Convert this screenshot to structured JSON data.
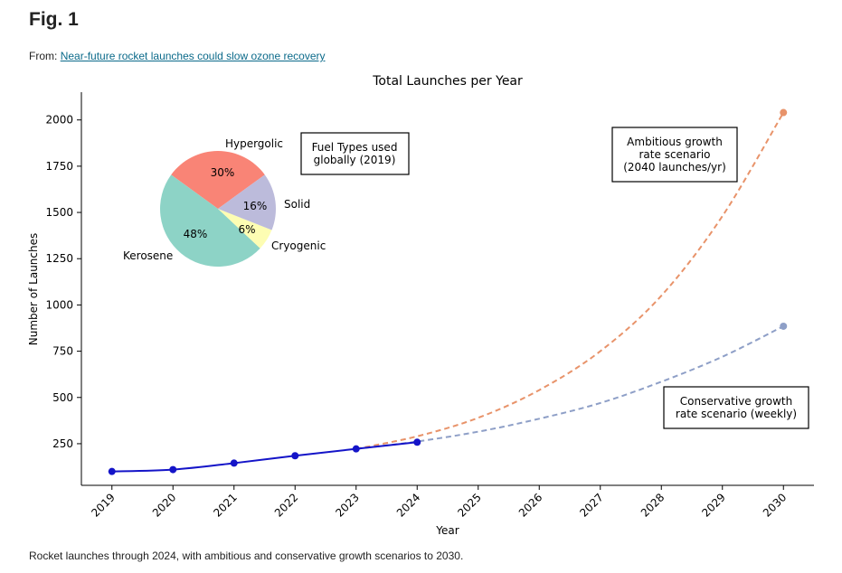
{
  "figure": {
    "title": "Fig. 1",
    "from_prefix": "From:",
    "source_link": "Near-future rocket launches could slow ozone recovery",
    "caption": "Rocket launches through 2024, with ambitious and conservative growth scenarios to 2030."
  },
  "chart_data": [
    {
      "type": "line",
      "title": "Total Launches per Year",
      "xlabel": "Year",
      "ylabel": "Number of Launches",
      "xlim": [
        2018.5,
        2030.5
      ],
      "ylim": [
        25,
        2150
      ],
      "x_ticks": [
        "2019",
        "2020",
        "2021",
        "2022",
        "2023",
        "2024",
        "2025",
        "2026",
        "2027",
        "2028",
        "2029",
        "2030"
      ],
      "y_ticks": [
        "250",
        "500",
        "750",
        "1000",
        "1250",
        "1500",
        "1750",
        "2000"
      ],
      "grid": false,
      "series": [
        {
          "style": "solid-with-markers",
          "color": "#1414c8",
          "x": [
            2019,
            2020,
            2021,
            2022,
            2023,
            2024
          ],
          "y": [
            100,
            110,
            145,
            185,
            222,
            258
          ]
        },
        {
          "style": "dashed",
          "color": "#e8936a",
          "x": [
            2023,
            2024,
            2025,
            2026,
            2027,
            2028,
            2029,
            2030
          ],
          "y": [
            222,
            290,
            390,
            540,
            750,
            1050,
            1480,
            2040
          ]
        },
        {
          "style": "dashed",
          "color": "#8e9fc7",
          "x": [
            2023,
            2024,
            2025,
            2026,
            2027,
            2028,
            2029,
            2030
          ],
          "y": [
            222,
            262,
            315,
            385,
            470,
            585,
            720,
            885
          ]
        }
      ],
      "annotations": [
        "Ambitious growth\nrate scenario\n(2040 launches/yr)",
        "Conservative growth\nrate scenario (weekly)"
      ]
    },
    {
      "type": "pie",
      "title": "Fuel Types used\nglobally (2019)",
      "slices": [
        {
          "label": "Hypergolic",
          "pct_label": "30%",
          "value": 30,
          "color": "#f98476"
        },
        {
          "label": "Solid",
          "pct_label": "16%",
          "value": 16,
          "color": "#bcbbdb"
        },
        {
          "label": "Cryogenic",
          "pct_label": "6%",
          "value": 6,
          "color": "#fdfdb3"
        },
        {
          "label": "Kerosene",
          "pct_label": "48%",
          "value": 48,
          "color": "#8dd3c6"
        }
      ]
    }
  ]
}
